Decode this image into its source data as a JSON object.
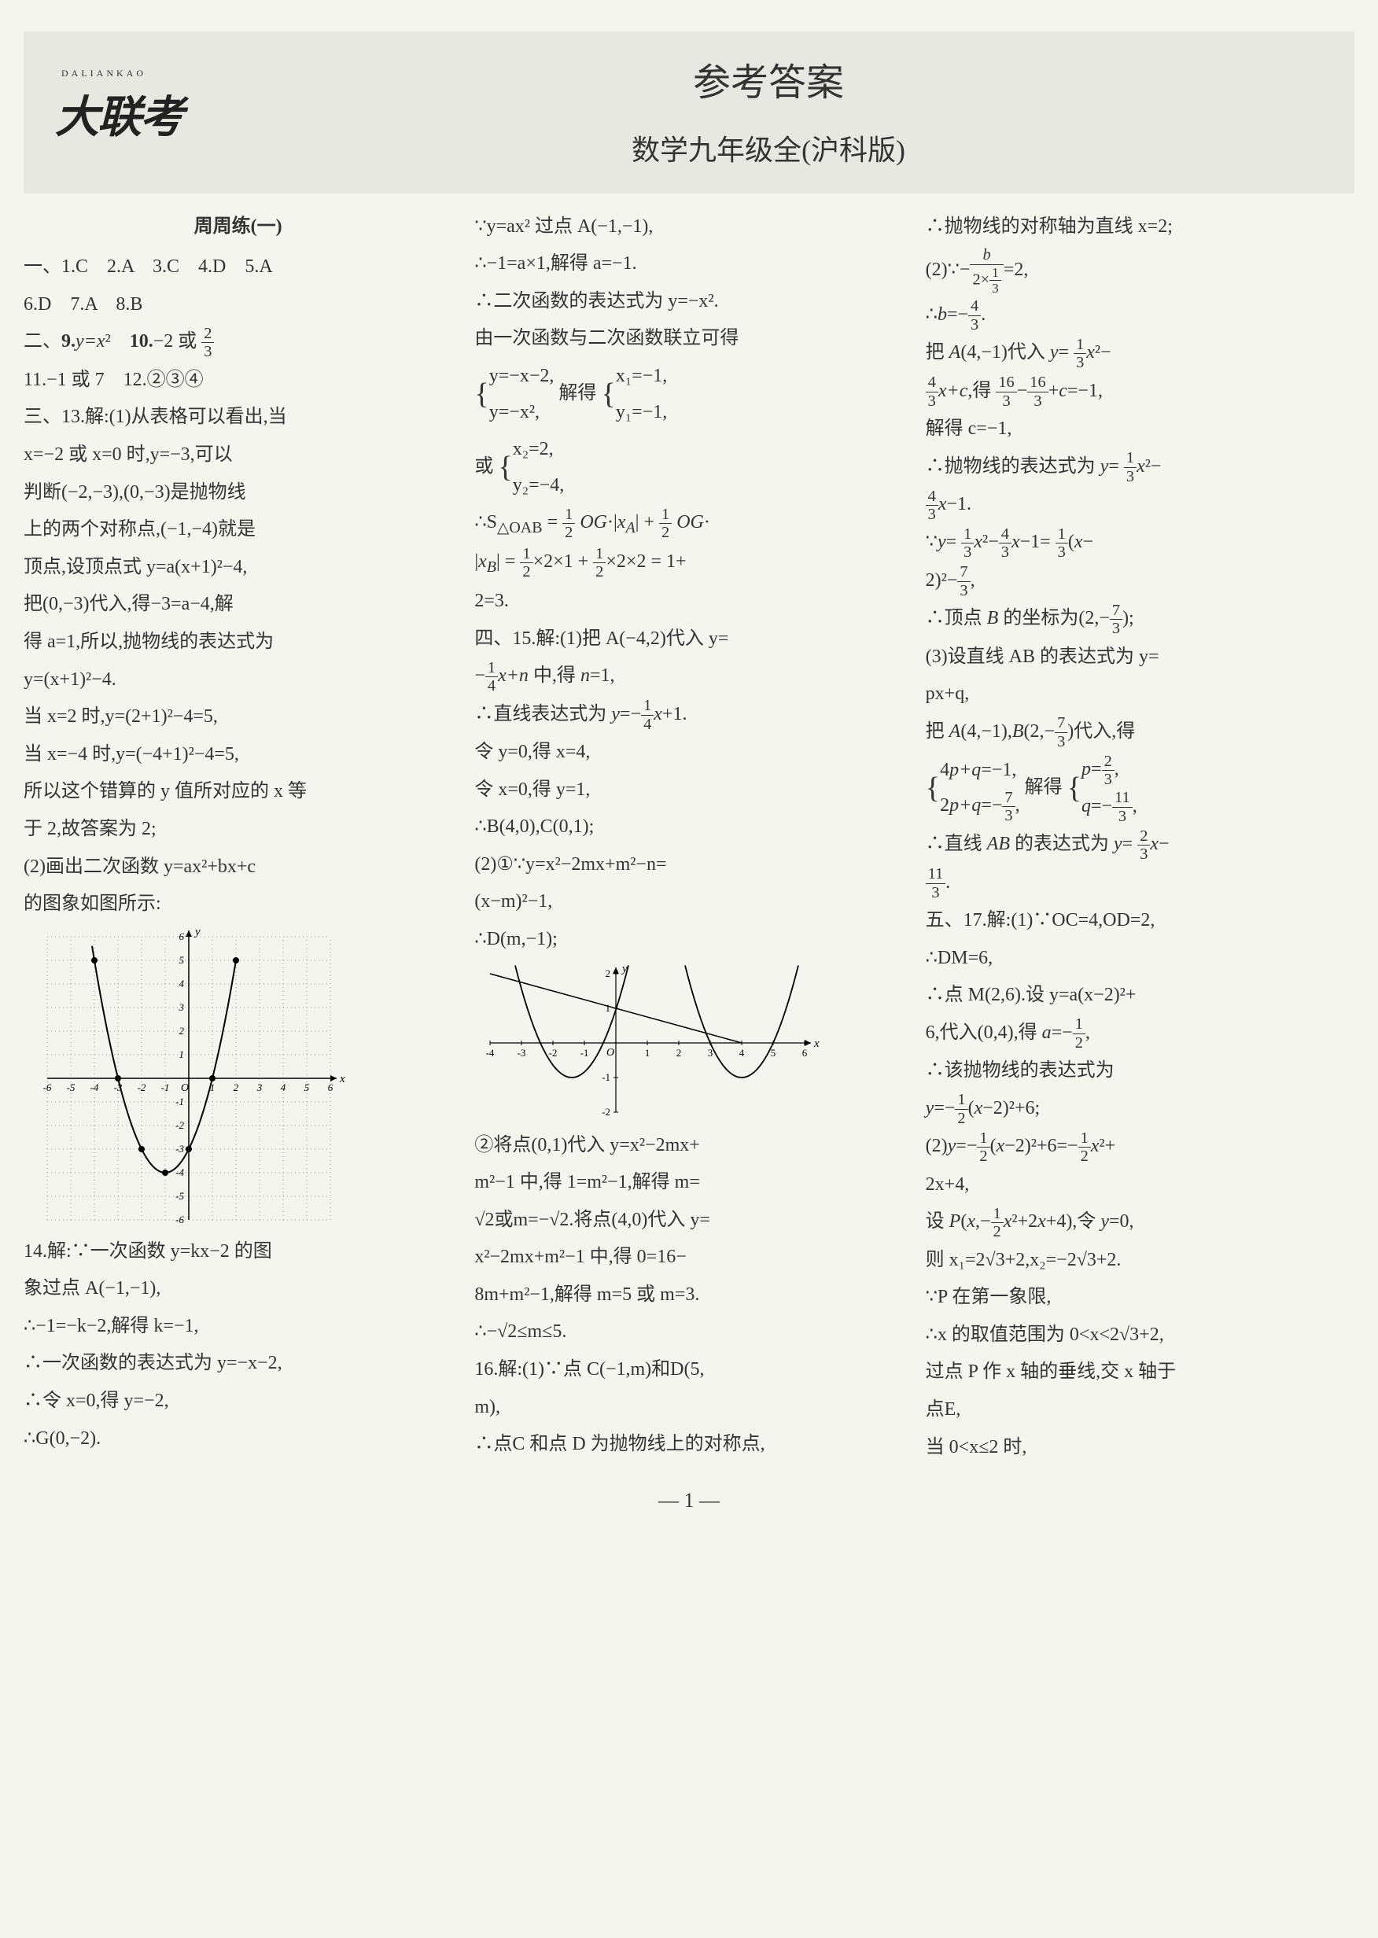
{
  "header": {
    "logo_pinyin": "DALIANKAO",
    "logo": "大联考",
    "title": "参考答案",
    "subtitle": "数学九年级全(沪科版)"
  },
  "sections": {
    "weekly_title": "周周练(一)",
    "part1": "一、1.C　2.A　3.C　4.D　5.A",
    "part1b": "6.D　7.A　8.B",
    "part2_9": "二、9.y=x²　10.−2 或 2/3",
    "part2_11": "11.−1 或 7　12.②③④",
    "q13_intro": "三、13.解:(1)从表格可以看出,当",
    "q13_l1": "x=−2 或 x=0 时,y=−3,可以",
    "q13_l2": "判断(−2,−3),(0,−3)是抛物线",
    "q13_l3": "上的两个对称点,(−1,−4)就是",
    "q13_l4": "顶点,设顶点式 y=a(x+1)²−4,",
    "q13_l5": "把(0,−3)代入,得−3=a−4,解",
    "q13_l6": "得 a=1,所以,抛物线的表达式为",
    "q13_l7": "y=(x+1)²−4.",
    "q13_l8": "当 x=2 时,y=(2+1)²−4=5,",
    "q13_l9": "当 x=−4 时,y=(−4+1)²−4=5,",
    "q13_l10": "所以这个错算的 y 值所对应的 x 等",
    "q13_l11": "于 2,故答案为 2;",
    "q13_l12": "(2)画出二次函数 y=ax²+bx+c",
    "q13_l13": "的图象如图所示:",
    "q14_l1": "14.解:∵一次函数 y=kx−2 的图",
    "q14_l2": "象过点 A(−1,−1),",
    "q14_l3": "∴−1=−k−2,解得 k=−1,",
    "q14_l4": "∴一次函数的表达式为 y=−x−2,",
    "q14_l5": "∴令 x=0,得 y=−2,",
    "q14_l6": "∴G(0,−2).",
    "q14_l7": "∵y=ax² 过点 A(−1,−1),",
    "q14_l8": "∴−1=a×1,解得 a=−1.",
    "q14_l9": "∴二次函数的表达式为 y=−x².",
    "q14_l10": "由一次函数与二次函数联立可得",
    "q14_sys1a": "y=−x−2,",
    "q14_sys1b": "y=−x²,",
    "q14_sys_mid": "解得",
    "q14_sys2a": "x₁=−1,",
    "q14_sys2b": "y₁=−1,",
    "col2_or": "或",
    "c2_sys_a": "x₂=2,",
    "c2_sys_b": "y₂=−4,",
    "c2_l1": "∴S△OAB = 1/2 OG·|xA| + 1/2 OG·",
    "c2_l2": "|xB| = 1/2×2×1 + 1/2×2×2 = 1+",
    "c2_l3": "2=3.",
    "q15_l1": "四、15.解:(1)把 A(−4,2)代入 y=",
    "q15_l2": "−1/4 x+n 中,得 n=1,",
    "q15_l3": "∴直线表达式为 y=−1/4 x+1.",
    "q15_l4": "令 y=0,得 x=4,",
    "q15_l5": "令 x=0,得 y=1,",
    "q15_l6": "∴B(4,0),C(0,1);",
    "q15_l7": "(2)①∵y=x²−2mx+m²−n=",
    "q15_l8": "(x−m)²−1,",
    "q15_l9": "∴D(m,−1);",
    "q15_l10": "②将点(0,1)代入 y=x²−2mx+",
    "q15_l11": "m²−1 中,得 1=m²−1,解得 m=",
    "q15_l12": "√2或m=−√2.将点(4,0)代入 y=",
    "q15_l13": "x²−2mx+m²−1 中,得 0=16−",
    "q15_l14": "8m+m²−1,解得 m=5 或 m=3.",
    "q15_l15": "∴−√2≤m≤5.",
    "q16_l1": "16.解:(1)∵点 C(−1,m)和D(5,",
    "q16_l2": "m),",
    "q16_l3": "∴点C 和点 D 为抛物线上的对称点,",
    "q16_l4": "∴抛物线的对称轴为直线 x=2;",
    "q16_l5": "(2)∵− b/(2×1/3) =2,",
    "q16_l6": "∴b=−4/3.",
    "q16_l7": "把 A(4,−1)代入 y= 1/3 x²−",
    "q16_l8": "4/3 x+c,得 16/3 − 16/3 +c=−1,",
    "c3_l1": "解得 c=−1,",
    "c3_l2": "∴抛物线的表达式为 y= 1/3 x²−",
    "c3_l3": "4/3 x−1.",
    "c3_l4": "∵y= 1/3 x²− 4/3 x−1= 1/3 (x−",
    "c3_l5": "2)²− 7/3 ,",
    "c3_l6": "∴顶点 B 的坐标为(2,−7/3);",
    "c3_l7": "(3)设直线 AB 的表达式为 y=",
    "c3_l8": "px+q,",
    "c3_l9": "把 A(4,−1),B(2,−7/3)代入,得",
    "c3_sys1a": "4p+q=−1,",
    "c3_sys1b": "2p+q=−7/3,",
    "c3_sys_mid": "解得",
    "c3_sys2a": "p=2/3,",
    "c3_sys2b": "q=−11/3,",
    "c3_l10": "∴直线 AB 的表达式为 y= 2/3 x−",
    "c3_l11": "11/3.",
    "q17_l1": "五、17.解:(1)∵OC=4,OD=2,",
    "q17_l2": "∴DM=6,",
    "q17_l3": "∴点 M(2,6).设 y=a(x−2)²+",
    "q17_l4": "6,代入(0,4),得 a=−1/2,",
    "q17_l5": "∴该抛物线的表达式为",
    "q17_l6": "y=−1/2(x−2)²+6;",
    "q17_l7": "(2)y=−1/2(x−2)²+6=−1/2 x²+",
    "q17_l8": "2x+4,",
    "q17_l9": "设 P(x,−1/2 x²+2x+4),令 y=0,",
    "q17_l10": "则 x₁=2√3+2,x₂=−2√3+2.",
    "q17_l11": "∵P 在第一象限,",
    "q17_l12": "∴x 的取值范围为 0<x<2√3+2,",
    "q17_l13": "过点 P 作 x 轴的垂线,交 x 轴于",
    "q17_l14": "点E,",
    "q17_l15": "当 0<x≤2 时,"
  },
  "page": "— 1 —",
  "graph1": {
    "type": "scatter-line",
    "xlim": [
      -6,
      6
    ],
    "ylim": [
      -6,
      6
    ],
    "xticks": [
      -6,
      -5,
      -4,
      -3,
      -2,
      -1,
      1,
      2,
      3,
      4,
      5,
      6
    ],
    "yticks": [
      -6,
      -5,
      -4,
      -3,
      -2,
      -1,
      1,
      2,
      3,
      4,
      5,
      6
    ],
    "grid_color": "#999",
    "axis_color": "#000",
    "curve_color": "#000",
    "points": [
      [
        -4,
        5
      ],
      [
        -3,
        0
      ],
      [
        -2,
        -3
      ],
      [
        -1,
        -4
      ],
      [
        0,
        -3
      ],
      [
        1,
        0
      ],
      [
        2,
        5
      ]
    ],
    "point_color": "#000"
  },
  "graph2": {
    "type": "parabola-line",
    "xlim": [
      -4,
      6
    ],
    "ylim": [
      -2,
      2
    ],
    "xticks": [
      -4,
      -3,
      -2,
      -1,
      1,
      2,
      3,
      4,
      5,
      6
    ],
    "yticks": [
      -2,
      -1,
      1,
      2
    ],
    "axis_color": "#000",
    "curve_color": "#000",
    "line_pts": [
      [
        -4,
        2
      ],
      [
        4,
        0
      ]
    ],
    "parabolas": [
      {
        "vertex": [
          -1.4,
          -1
        ],
        "a": 1
      },
      {
        "vertex": [
          4,
          -1
        ],
        "a": 1
      }
    ]
  }
}
